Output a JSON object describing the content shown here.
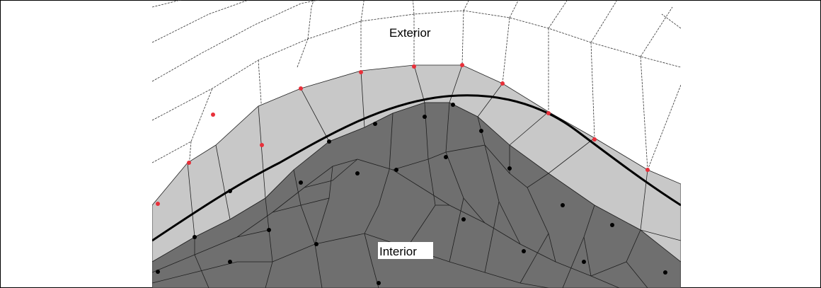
{
  "figure": {
    "exterior_label": "Exterior",
    "interior_label": "Interior"
  },
  "colors": {
    "background": "#ffffff",
    "boundary_layer_fill": "#c8c8c8",
    "interior_fill": "#6f6f6f",
    "grid_line": "#222222",
    "boundary_curve": "#000000",
    "exterior_node": "#e8303a",
    "interior_node": "#000000"
  }
}
